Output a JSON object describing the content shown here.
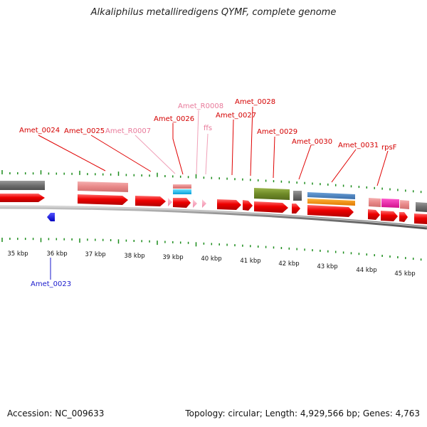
{
  "title": "Alkaliphilus metalliredigens QYMF, complete genome",
  "accession": "Accession: NC_009633",
  "summary": "Topology: circular; Length: 4,929,566 bp; Genes: 4,763",
  "colors": {
    "cds_forward": "#ff0000",
    "cds_reverse": "#0000ff",
    "rna": "#ffb6c8",
    "label_red": "#d40000",
    "label_pink": "#e8799a",
    "label_blue": "#1a1acc",
    "tick_green": "#1a8c1a",
    "backbone": "#7a7a7a"
  },
  "scale_labels": [
    "35 kbp",
    "36 kbp",
    "37 kbp",
    "38 kbp",
    "39 kbp",
    "40 kbp",
    "41 kbp",
    "42 kbp",
    "43 kbp",
    "44 kbp",
    "45 kbp"
  ],
  "gene_labels": [
    {
      "text": "Amet_0024",
      "type": "cds"
    },
    {
      "text": "Amet_0025",
      "type": "cds"
    },
    {
      "text": "Amet_R0007",
      "type": "rna"
    },
    {
      "text": "Amet_0026",
      "type": "cds"
    },
    {
      "text": "Amet_R0008",
      "type": "rna"
    },
    {
      "text": "ffs",
      "type": "rna"
    },
    {
      "text": "Amet_0027",
      "type": "cds"
    },
    {
      "text": "Amet_0028",
      "type": "cds"
    },
    {
      "text": "Amet_0029",
      "type": "cds"
    },
    {
      "text": "Amet_0030",
      "type": "cds"
    },
    {
      "text": "Amet_0031",
      "type": "cds"
    },
    {
      "text": "rpsF",
      "type": "cds"
    },
    {
      "text": "Amet_0023",
      "type": "reverse"
    }
  ]
}
